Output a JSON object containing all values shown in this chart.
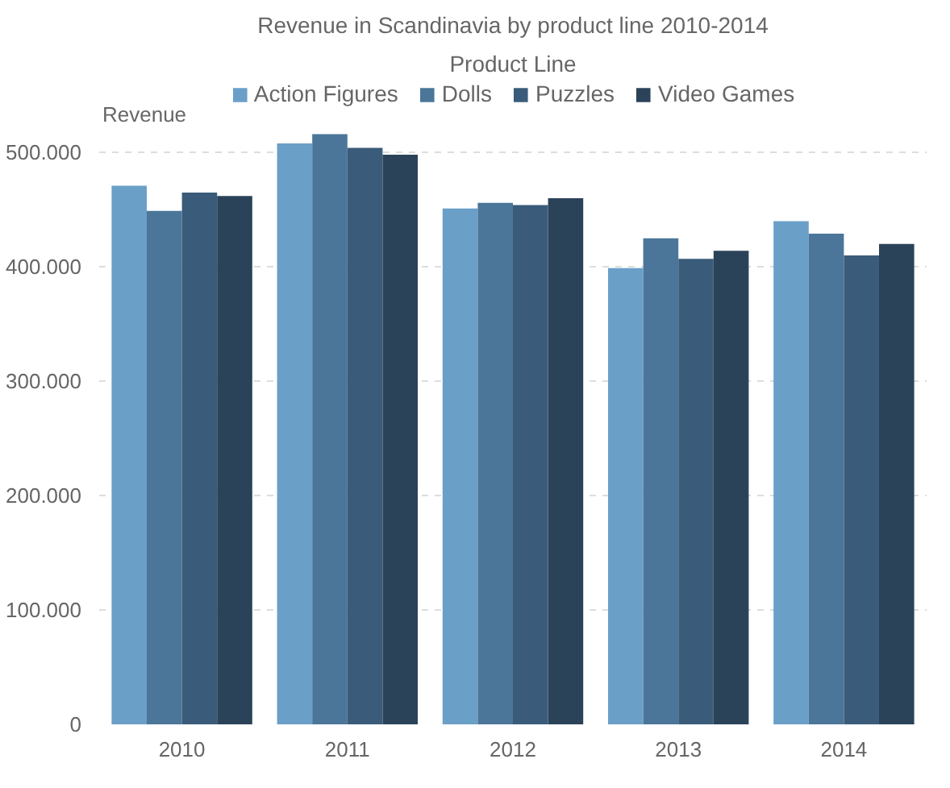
{
  "chart_data": {
    "type": "bar",
    "title": "Revenue in Scandinavia by product line 2010-2014",
    "legend_title": "Product Line",
    "ylabel": "Revenue",
    "categories": [
      "2010",
      "2011",
      "2012",
      "2013",
      "2014"
    ],
    "series": [
      {
        "name": "Action Figures",
        "color": "#6a9fc8",
        "values": [
          471000,
          508000,
          451000,
          399000,
          440000
        ]
      },
      {
        "name": "Dolls",
        "color": "#4b7699",
        "values": [
          449000,
          516000,
          456000,
          425000,
          429000
        ]
      },
      {
        "name": "Puzzles",
        "color": "#3a5c7a",
        "values": [
          465000,
          504000,
          454000,
          407000,
          410000
        ]
      },
      {
        "name": "Video Games",
        "color": "#2b4359",
        "values": [
          462000,
          498000,
          460000,
          414000,
          420000
        ]
      }
    ],
    "ylim": [
      0,
      565000
    ],
    "yticks": [
      0,
      {
        "value": 100000,
        "label": "100.000"
      },
      {
        "value": 200000,
        "label": "200.000"
      },
      {
        "value": 300000,
        "label": "300.000"
      },
      {
        "value": 400000,
        "label": "400.000"
      },
      {
        "value": 500000,
        "label": "500.000"
      }
    ],
    "grid": "y",
    "legend": "top"
  }
}
